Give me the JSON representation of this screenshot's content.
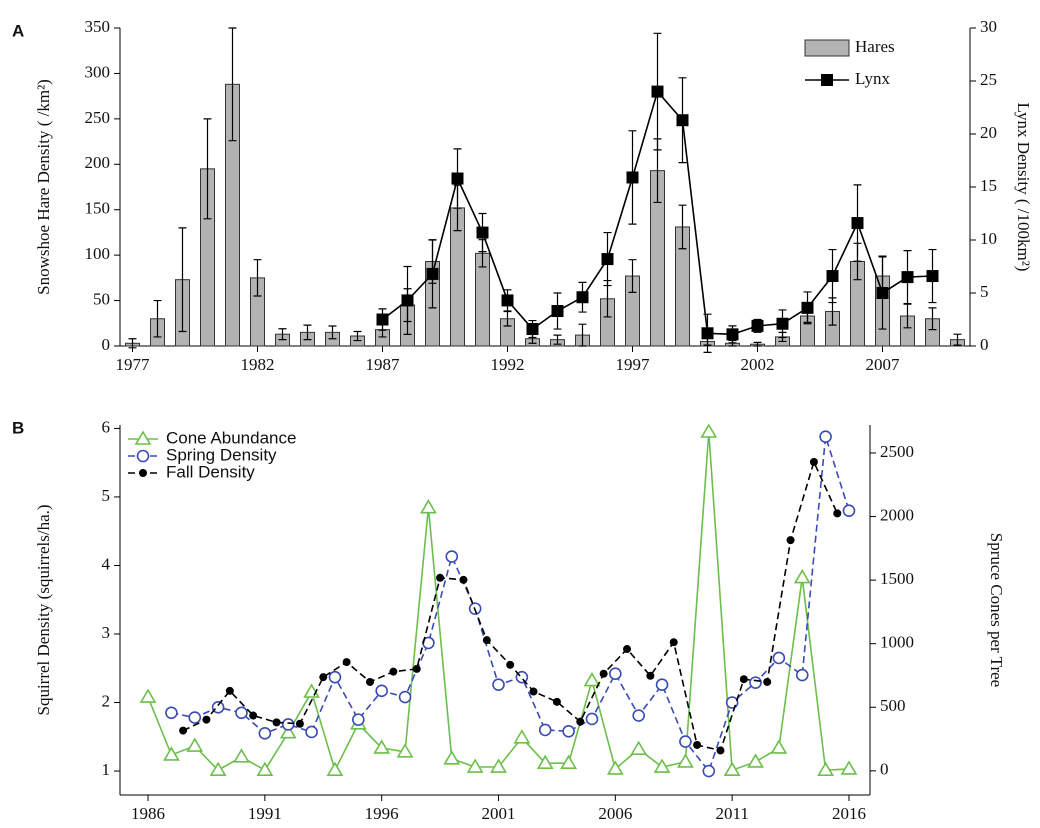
{
  "chart_data": [
    {
      "type": "bar",
      "label": "A",
      "ylabel": "Snowshoe Hare Density ( /km²)",
      "y2label": "Lynx Density ( /100km²)",
      "legend": "upper right",
      "x": [
        1977,
        1978,
        1979,
        1980,
        1981,
        1982,
        1983,
        1984,
        1985,
        1986,
        1987,
        1988,
        1989,
        1990,
        1991,
        1992,
        1993,
        1994,
        1995,
        1996,
        1997,
        1998,
        1999,
        2000,
        2001,
        2002,
        2003,
        2004,
        2005,
        2006,
        2007,
        2008,
        2009,
        2010
      ],
      "xlim": [
        1976.5,
        2010.5
      ],
      "xticks": [
        1977,
        1982,
        1987,
        1992,
        1997,
        2002,
        2007
      ],
      "ylim": [
        0,
        350
      ],
      "yticks": [
        0,
        50,
        100,
        150,
        200,
        250,
        300,
        350
      ],
      "y2lim": [
        0,
        30
      ],
      "y2ticks": [
        0,
        5,
        10,
        15,
        20,
        25,
        30
      ],
      "series": [
        {
          "name": "Hares",
          "type": "bar",
          "color": "#b3b3b3",
          "values": [
            3,
            30,
            73,
            195,
            288,
            75,
            13,
            15,
            15,
            11,
            18,
            45,
            93,
            152,
            102,
            30,
            8,
            7,
            12,
            52,
            77,
            193,
            131,
            5,
            3,
            2,
            10,
            33,
            38,
            93,
            77,
            33,
            30,
            7
          ],
          "errors": [
            5,
            20,
            57,
            55,
            62,
            20,
            6,
            8,
            7,
            5,
            8,
            18,
            24,
            25,
            15,
            8,
            5,
            5,
            12,
            20,
            18,
            35,
            24,
            4,
            3,
            2,
            5,
            7,
            15,
            20,
            22,
            13,
            12,
            6
          ]
        },
        {
          "name": "Lynx",
          "type": "line",
          "axis": "y2",
          "color": "#000000",
          "marker": "square",
          "values": [
            null,
            null,
            null,
            null,
            null,
            null,
            null,
            null,
            null,
            null,
            2.5,
            4.3,
            6.8,
            15.8,
            10.7,
            4.3,
            1.6,
            3.3,
            4.6,
            8.2,
            15.9,
            24.0,
            21.3,
            1.2,
            1.1,
            1.9,
            2.1,
            3.6,
            6.6,
            11.6,
            5.0,
            6.5,
            6.6,
            null
          ],
          "errors": [
            null,
            null,
            null,
            null,
            null,
            null,
            null,
            null,
            null,
            null,
            1.0,
            3.2,
            3.2,
            2.8,
            1.8,
            1.0,
            0.8,
            1.7,
            1.4,
            2.5,
            4.4,
            5.5,
            4.0,
            1.8,
            0.8,
            0.6,
            1.3,
            1.5,
            2.5,
            3.6,
            3.4,
            2.5,
            2.5,
            null
          ]
        }
      ]
    },
    {
      "type": "line",
      "label": "B",
      "ylabel": "Squirrel Density (squirrels/ha.)",
      "y2label": "Spruce Cones per Tree",
      "legend": "upper left",
      "xlim": [
        1984.8,
        2016.9
      ],
      "xticks": [
        1986,
        1991,
        1996,
        2001,
        2006,
        2011,
        2016
      ],
      "ylim": [
        0.65,
        6.05
      ],
      "yticks": [
        1,
        2,
        3,
        4,
        5,
        6
      ],
      "y2lim": [
        -190,
        2720
      ],
      "y2ticks": [
        0,
        500,
        1000,
        1500,
        2000,
        2500
      ],
      "series": [
        {
          "name": "Cone Abundance",
          "axis": "y2",
          "color": "#6cbf4a",
          "marker": "triangle",
          "x": [
            1986,
            1987,
            1988,
            1989,
            1990,
            1991,
            1992,
            1993,
            1994,
            1995,
            1996,
            1997,
            1998,
            1999,
            2000,
            2001,
            2002,
            2003,
            2004,
            2005,
            2006,
            2007,
            2008,
            2009,
            2010,
            2011,
            2012,
            2013,
            2014,
            2015,
            2016
          ],
          "values": [
            580,
            125,
            195,
            5,
            110,
            5,
            300,
            620,
            5,
            370,
            180,
            150,
            2070,
            95,
            30,
            30,
            260,
            60,
            60,
            710,
            15,
            170,
            30,
            70,
            2665,
            5,
            70,
            180,
            1520,
            5,
            15
          ]
        },
        {
          "name": "Spring Density",
          "color": "#3b4bb5",
          "marker": "circle",
          "dashed": true,
          "x": [
            1986,
            1987,
            1988,
            1989,
            1990,
            1991,
            1992,
            1993,
            1994,
            1995,
            1996,
            1997,
            1998,
            1999,
            2000,
            2001,
            2002,
            2003,
            2004,
            2005,
            2006,
            2007,
            2008,
            2009,
            2010,
            2011,
            2012,
            2013,
            2014,
            2015,
            2016
          ],
          "values": [
            null,
            1.85,
            1.78,
            1.93,
            1.85,
            1.55,
            1.68,
            1.57,
            2.37,
            1.75,
            2.17,
            2.08,
            2.87,
            4.13,
            3.37,
            2.26,
            2.37,
            1.6,
            1.58,
            1.76,
            2.42,
            1.81,
            2.26,
            1.43,
            1.0,
            2.0,
            2.29,
            2.65,
            2.4,
            5.88,
            4.8
          ]
        },
        {
          "name": "Fall Density",
          "color": "#000000",
          "marker": "dot",
          "dashed": true,
          "x": [
            1987.5,
            1988.5,
            1989.5,
            1990.5,
            1991.5,
            1992.5,
            1993.5,
            1994.5,
            1995.5,
            1996.5,
            1997.5,
            1998.5,
            1999.5,
            2000.5,
            2001.5,
            2002.5,
            2003.5,
            2004.5,
            2005.5,
            2006.5,
            2007.5,
            2008.5,
            2009.5,
            2010.5,
            2011.5,
            2012.5,
            2013.5,
            2014.5,
            2015.5
          ],
          "values": [
            1.59,
            1.75,
            2.17,
            1.81,
            1.71,
            1.69,
            2.37,
            2.59,
            2.3,
            2.45,
            2.49,
            3.82,
            3.79,
            2.91,
            2.55,
            2.16,
            2.01,
            1.72,
            2.42,
            2.78,
            2.39,
            2.88,
            1.38,
            1.3,
            2.34,
            2.3,
            4.37,
            5.51,
            4.76
          ]
        }
      ]
    }
  ]
}
